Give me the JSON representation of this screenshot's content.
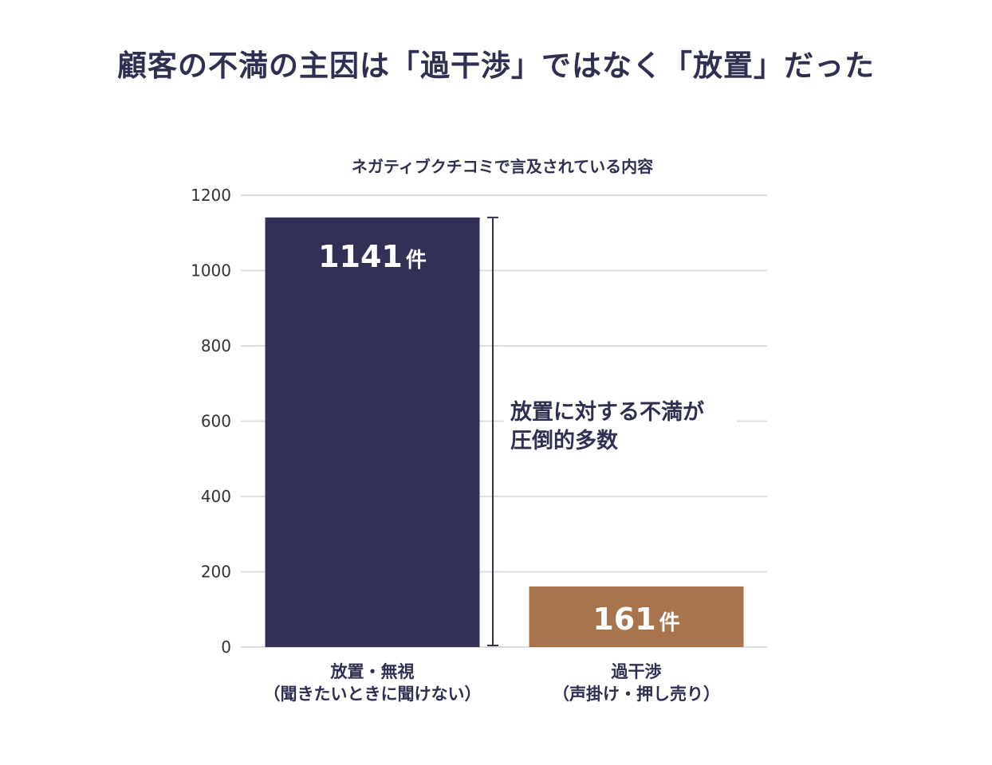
{
  "title": "顧客の不満の主因は「過干渉」ではなく「放置」だった",
  "chart_data": {
    "type": "bar",
    "title": "ネガティブクチコミで言及されている内容",
    "categories": [
      {
        "line1": "放置・無視",
        "line2": "（聞きたいときに聞けない）"
      },
      {
        "line1": "過干渉",
        "line2": "（声掛け・押し売り）"
      }
    ],
    "values": [
      1141,
      161
    ],
    "unit": "件",
    "ylim": [
      0,
      1200
    ],
    "yticks": [
      0,
      200,
      400,
      600,
      800,
      1000,
      1200
    ],
    "grid": true,
    "colors": [
      "#323155",
      "#a8744e"
    ],
    "annotation": {
      "lines": [
        "放置に対する不満が",
        "圧倒的多数"
      ]
    }
  }
}
